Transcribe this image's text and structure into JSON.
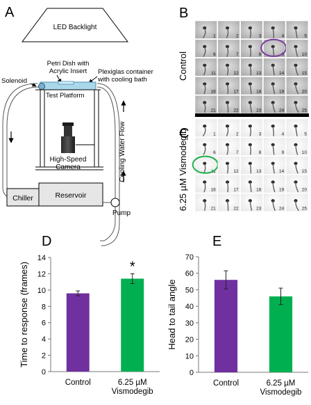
{
  "panels": {
    "A": {
      "letter": "A",
      "labels": {
        "backlight": "LED Backlight",
        "petri_line1": "Petri Dish with",
        "petri_line2": "Acrylic Insert",
        "plexi_line1": "Plexiglas container",
        "plexi_line2": "with cooling bath",
        "solenoid": "Solenoid",
        "platform": "Test Platform",
        "camera_line1": "High-Speed",
        "camera_line2": "Camera",
        "flow": "Cooling Water Flow",
        "chiller": "Chiller",
        "reservoir": "Reservoir",
        "pump": "Pump"
      }
    },
    "B": {
      "letter": "B",
      "group_label": "Control",
      "frame_numbers": [
        "1",
        "2",
        "3",
        "4",
        "5",
        "6",
        "7",
        "8",
        "9",
        "10",
        "11",
        "12",
        "13",
        "14",
        "15",
        "16",
        "17",
        "18",
        "19",
        "20",
        "21",
        "22",
        "23",
        "24",
        "25"
      ],
      "highlight_frame": 9,
      "highlight_color": "#7b3fa0"
    },
    "C": {
      "letter": "C",
      "group_label": "6.25 µM Vismodegib",
      "frame_numbers": [
        "1",
        "2",
        "3",
        "4",
        "5",
        "6",
        "7",
        "8",
        "9",
        "10",
        "11",
        "12",
        "13",
        "14",
        "15",
        "16",
        "17",
        "18",
        "19",
        "20",
        "21",
        "22",
        "23",
        "24",
        "25"
      ],
      "highlight_frame": 11,
      "highlight_color": "#1fb04a"
    },
    "D": {
      "letter": "D",
      "significance_marker": "*"
    },
    "E": {
      "letter": "E"
    }
  },
  "chart_data": [
    {
      "type": "bar",
      "panel": "D",
      "ylabel": "Time to response (frames)",
      "ylim": [
        0,
        14
      ],
      "yticks": [
        0,
        2,
        4,
        6,
        8,
        10,
        12,
        14
      ],
      "categories": [
        "Control",
        "6.25 µM|Vismodegib"
      ],
      "values": [
        9.6,
        11.4
      ],
      "errors": [
        0.3,
        0.6
      ],
      "colors": [
        "#7030a0",
        "#00b050"
      ],
      "grid": false
    },
    {
      "type": "bar",
      "panel": "E",
      "ylabel": "Head to tail angle",
      "ylim": [
        0,
        70
      ],
      "yticks": [
        0,
        10,
        20,
        30,
        40,
        50,
        60,
        70
      ],
      "categories": [
        "Control",
        "6.25 µM|Vismodegib"
      ],
      "values": [
        56,
        46
      ],
      "errors": [
        5.5,
        5
      ],
      "colors": [
        "#7030a0",
        "#00b050"
      ],
      "grid": false
    }
  ]
}
